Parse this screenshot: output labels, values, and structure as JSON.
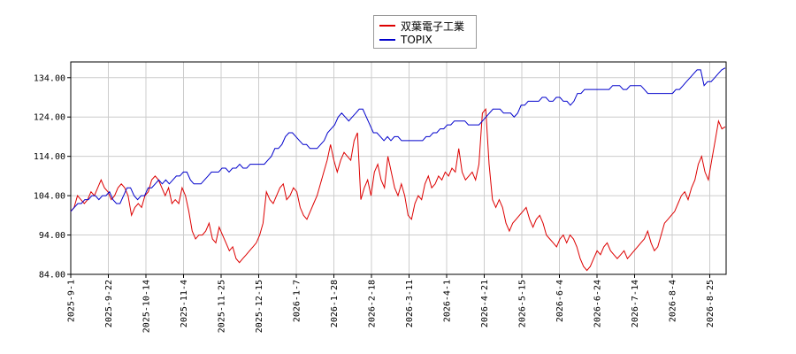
{
  "chart_data": {
    "type": "line",
    "title": "",
    "xlabel": "",
    "ylabel": "",
    "ylim": [
      84.0,
      138.0
    ],
    "y_ticks": [
      "84.00",
      "94.00",
      "104.00",
      "114.00",
      "124.00",
      "134.00"
    ],
    "x_ticks": [
      "2025-9-1",
      "2025-9-22",
      "2025-10-14",
      "2025-11-4",
      "2025-11-25",
      "2025-12-15",
      "2026-1-7",
      "2026-1-28",
      "2026-2-18",
      "2026-3-11",
      "2026-4-1",
      "2026-4-21",
      "2026-5-15",
      "2026-6-4",
      "2026-6-24",
      "2026-7-14",
      "2026-8-4",
      "2026-8-25"
    ],
    "grid": true,
    "legend_position": "top-center",
    "series": [
      {
        "name": "双葉電子工業",
        "color": "#dd0000",
        "values": [
          100,
          101,
          104,
          103,
          102,
          103,
          105,
          104,
          106,
          108,
          106,
          105,
          103,
          104,
          106,
          107,
          106,
          104,
          99,
          101,
          102,
          101,
          104,
          105,
          108,
          109,
          108,
          106,
          104,
          106,
          102,
          103,
          102,
          106,
          104,
          100,
          95,
          93,
          94,
          94,
          95,
          97,
          93,
          92,
          96,
          94,
          92,
          90,
          91,
          88,
          87,
          88,
          89,
          90,
          91,
          92,
          94,
          97,
          105,
          103,
          102,
          104,
          106,
          107,
          103,
          104,
          106,
          105,
          101,
          99,
          98,
          100,
          102,
          104,
          107,
          110,
          113,
          117,
          113,
          110,
          113,
          115,
          114,
          113,
          118,
          120,
          103,
          106,
          108,
          104,
          110,
          112,
          108,
          106,
          114,
          110,
          106,
          104,
          107,
          104,
          99,
          98,
          102,
          104,
          103,
          107,
          109,
          106,
          107,
          109,
          108,
          110,
          109,
          111,
          110,
          116,
          110,
          108,
          109,
          110,
          108,
          112,
          125,
          126,
          112,
          103,
          101,
          103,
          101,
          97,
          95,
          97,
          98,
          99,
          100,
          101,
          98,
          96,
          98,
          99,
          97,
          94,
          93,
          92,
          91,
          93,
          94,
          92,
          94,
          93,
          91,
          88,
          86,
          85,
          86,
          88,
          90,
          89,
          91,
          92,
          90,
          89,
          88,
          89,
          90,
          88,
          89,
          90,
          91,
          92,
          93,
          95,
          92,
          90,
          91,
          94,
          97,
          98,
          99,
          100,
          102,
          104,
          105,
          103,
          106,
          108,
          112,
          114,
          110,
          108,
          113,
          118,
          123,
          121
        ],
        "end_value": 121.5
      },
      {
        "name": "TOPIX",
        "color": "#0000cc",
        "values": [
          100,
          101,
          102,
          102,
          103,
          103,
          104,
          104,
          103,
          104,
          104,
          105,
          103,
          102,
          102,
          104,
          106,
          106,
          104,
          103,
          104,
          104,
          106,
          106,
          107,
          108,
          107,
          108,
          107,
          108,
          109,
          109,
          110,
          110,
          108,
          107,
          107,
          107,
          108,
          109,
          110,
          110,
          110,
          111,
          111,
          110,
          111,
          111,
          112,
          111,
          111,
          112,
          112,
          112,
          112,
          112,
          113,
          114,
          116,
          116,
          117,
          119,
          120,
          120,
          119,
          118,
          117,
          117,
          116,
          116,
          116,
          117,
          118,
          120,
          121,
          122,
          124,
          125,
          124,
          123,
          124,
          125,
          126,
          126,
          124,
          122,
          120,
          120,
          119,
          118,
          119,
          118,
          119,
          119,
          118,
          118,
          118,
          118,
          118,
          118,
          118,
          119,
          119,
          120,
          120,
          121,
          121,
          122,
          122,
          123,
          123,
          123,
          123,
          122,
          122,
          122,
          122,
          123,
          124,
          125,
          126,
          126,
          126,
          125,
          125,
          125,
          124,
          125,
          127,
          127,
          128,
          128,
          128,
          128,
          129,
          129,
          128,
          128,
          129,
          129,
          128,
          128,
          127,
          128,
          130,
          130,
          131,
          131,
          131,
          131,
          131,
          131,
          131,
          131,
          132,
          132,
          132,
          131,
          131,
          132,
          132,
          132,
          132,
          131,
          130,
          130,
          130,
          130,
          130,
          130,
          130,
          130,
          131,
          131,
          132,
          133,
          134,
          135,
          136,
          136,
          132,
          133,
          133,
          134,
          135,
          136
        ],
        "end_value": 136.5
      }
    ]
  }
}
